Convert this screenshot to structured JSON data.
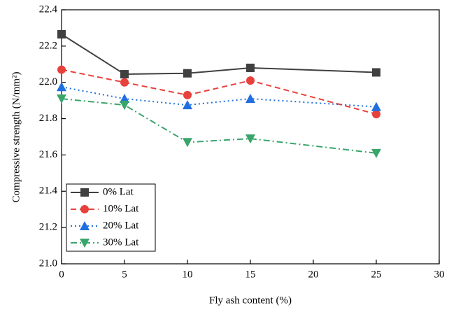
{
  "chart_data": {
    "type": "line",
    "x_label": "Fly ash content (%)",
    "y_label": "Compressive strength (N/mm²)",
    "x": [
      0,
      5,
      10,
      15,
      25
    ],
    "series": [
      {
        "name": "0% Lat",
        "color": "#404040",
        "marker": "square",
        "dash": "solid",
        "values": [
          22.265,
          22.045,
          22.05,
          22.08,
          22.055
        ]
      },
      {
        "name": "10% Lat",
        "color": "#e8413c",
        "marker": "circle",
        "dash": "dashed",
        "values": [
          22.07,
          22.0,
          21.93,
          22.01,
          21.825
        ]
      },
      {
        "name": "20% Lat",
        "color": "#1f6fe0",
        "marker": "triangle-up",
        "dash": "dotted",
        "values": [
          21.975,
          21.91,
          21.875,
          21.91,
          21.865
        ]
      },
      {
        "name": "30% Lat",
        "color": "#3aa56b",
        "marker": "triangle-down",
        "dash": "dashdot",
        "values": [
          21.91,
          21.875,
          21.67,
          21.69,
          21.61
        ]
      }
    ],
    "xlim": [
      0,
      30
    ],
    "xticks": [
      0,
      5,
      10,
      15,
      20,
      25,
      30
    ],
    "ylim": [
      21.0,
      22.4
    ],
    "yticks": [
      {
        "value": 21.0,
        "label": "21.0"
      },
      21.2,
      21.4,
      21.6,
      21.8,
      {
        "value": 22.0,
        "label": "22.0"
      },
      22.2,
      22.4
    ],
    "legend": "lower left"
  }
}
